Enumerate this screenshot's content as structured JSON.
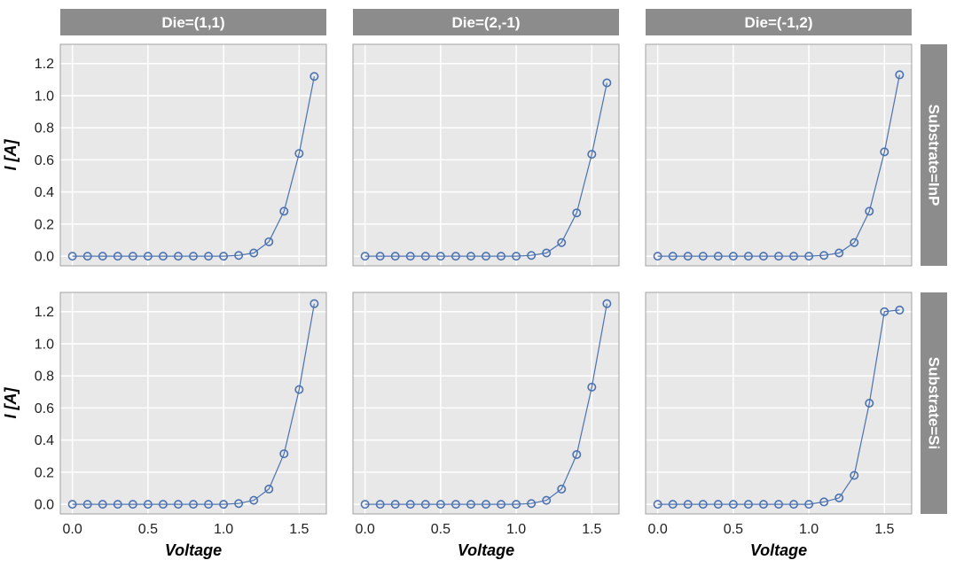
{
  "chart_data": {
    "type": "line",
    "layout": "facet-grid",
    "x_label": "Voltage",
    "y_label": "I [A]",
    "column_facets": [
      "Die=(1,1)",
      "Die=(2,-1)",
      "Die=(-1,2)"
    ],
    "row_facets": [
      "Substrate=InP",
      "Substrate=Si"
    ],
    "xlim": [
      -0.08,
      1.68
    ],
    "ylim": [
      -0.06,
      1.32
    ],
    "x_ticks": [
      0.0,
      0.5,
      1.0,
      1.5
    ],
    "x_tick_labels": [
      "0.0",
      "0.5",
      "1.0",
      "1.5"
    ],
    "y_ticks": [
      0.0,
      0.2,
      0.4,
      0.6,
      0.8,
      1.0,
      1.2
    ],
    "y_tick_labels": [
      "0.0",
      "0.2",
      "0.4",
      "0.6",
      "0.8",
      "1.0",
      "1.2"
    ],
    "x": [
      0.0,
      0.1,
      0.2,
      0.3,
      0.4,
      0.5,
      0.6,
      0.7,
      0.8,
      0.9,
      1.0,
      1.1,
      1.2,
      1.3,
      1.4,
      1.5,
      1.6
    ],
    "panels": [
      {
        "row": 0,
        "col": 0,
        "values": [
          0,
          0,
          0,
          0,
          0,
          0,
          0,
          0,
          0,
          0,
          0,
          0.005,
          0.02,
          0.09,
          0.28,
          0.64,
          1.12
        ]
      },
      {
        "row": 0,
        "col": 1,
        "values": [
          0,
          0,
          0,
          0,
          0,
          0,
          0,
          0,
          0,
          0,
          0,
          0.005,
          0.02,
          0.085,
          0.27,
          0.635,
          1.08
        ]
      },
      {
        "row": 0,
        "col": 2,
        "values": [
          0,
          0,
          0,
          0,
          0,
          0,
          0,
          0,
          0,
          0,
          0,
          0.005,
          0.02,
          0.085,
          0.28,
          0.65,
          1.13
        ]
      },
      {
        "row": 1,
        "col": 0,
        "values": [
          0,
          0,
          0,
          0,
          0,
          0,
          0,
          0,
          0,
          0,
          0,
          0.005,
          0.025,
          0.095,
          0.315,
          0.715,
          1.25
        ]
      },
      {
        "row": 1,
        "col": 1,
        "values": [
          0,
          0,
          0,
          0,
          0,
          0,
          0,
          0,
          0,
          0,
          0,
          0.005,
          0.025,
          0.095,
          0.31,
          0.73,
          1.25
        ]
      },
      {
        "row": 1,
        "col": 2,
        "values": [
          0,
          0,
          0,
          0,
          0,
          0,
          0,
          0,
          0,
          0,
          0,
          0.015,
          0.04,
          0.18,
          0.63,
          1.2,
          1.21
        ]
      }
    ],
    "grid": true,
    "colors": {
      "line": "#4c72b0",
      "panel_background": "#e8e8e8",
      "grid": "#ffffff",
      "strip": "#8c8c8c",
      "strip_text": "#ffffff",
      "panel_border": "#a0a0a0"
    },
    "marker": "open-circle"
  }
}
